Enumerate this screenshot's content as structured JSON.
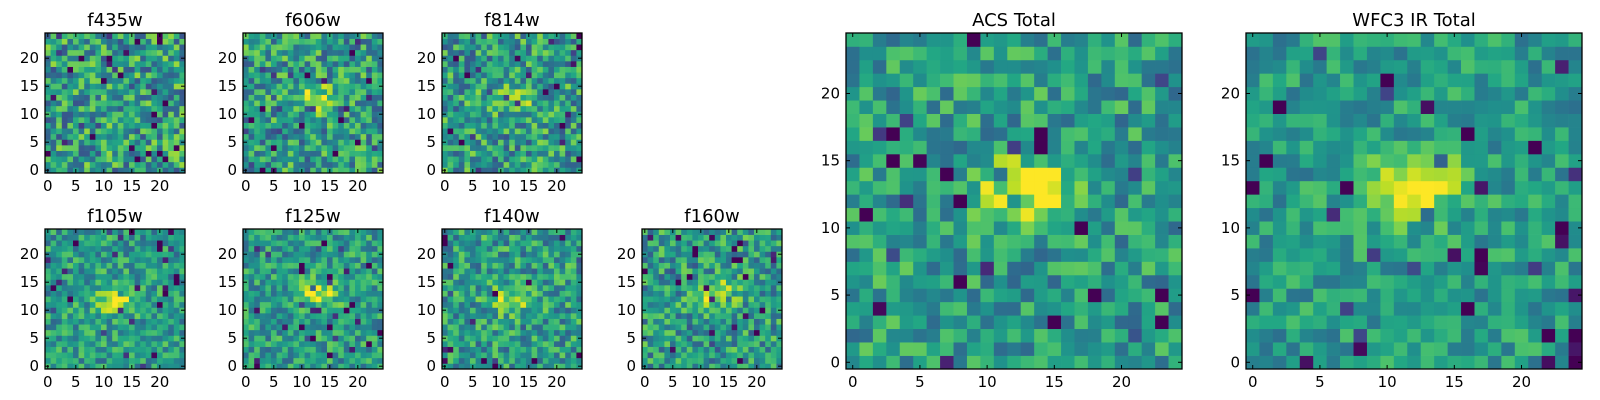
{
  "chart_data": [
    {
      "type": "heatmap",
      "title": "f435w",
      "grid": [
        25,
        25
      ],
      "xlim": [
        0,
        24
      ],
      "ylim": [
        0,
        24
      ],
      "xticks": [
        "0",
        "5",
        "10",
        "15",
        "20"
      ],
      "yticks": [
        "0",
        "5",
        "10",
        "15",
        "20"
      ],
      "source_peak": {
        "x": null,
        "y": null,
        "strength": 0.0
      },
      "noise": 0.3,
      "colormap": "viridis"
    },
    {
      "type": "heatmap",
      "title": "f606w",
      "grid": [
        25,
        25
      ],
      "xlim": [
        0,
        24
      ],
      "ylim": [
        0,
        24
      ],
      "xticks": [
        "0",
        "5",
        "10",
        "15",
        "20"
      ],
      "yticks": [
        "0",
        "5",
        "10",
        "15",
        "20"
      ],
      "source_peak": {
        "x": 13,
        "y": 13,
        "strength": 0.35
      },
      "noise": 0.28,
      "colormap": "viridis"
    },
    {
      "type": "heatmap",
      "title": "f814w",
      "grid": [
        25,
        25
      ],
      "xlim": [
        0,
        24
      ],
      "ylim": [
        0,
        24
      ],
      "xticks": [
        "0",
        "5",
        "10",
        "15",
        "20"
      ],
      "yticks": [
        "0",
        "5",
        "10",
        "15",
        "20"
      ],
      "source_peak": {
        "x": 12,
        "y": 13,
        "strength": 0.35
      },
      "noise": 0.28,
      "colormap": "viridis"
    },
    {
      "type": "heatmap",
      "title": "f105w",
      "grid": [
        25,
        25
      ],
      "xlim": [
        0,
        24
      ],
      "ylim": [
        0,
        24
      ],
      "xticks": [
        "0",
        "5",
        "10",
        "15",
        "20"
      ],
      "yticks": [
        "0",
        "5",
        "10",
        "15",
        "20"
      ],
      "source_peak": {
        "x": 12,
        "y": 12,
        "strength": 0.4
      },
      "noise": 0.22,
      "colormap": "viridis"
    },
    {
      "type": "heatmap",
      "title": "f125w",
      "grid": [
        25,
        25
      ],
      "xlim": [
        0,
        24
      ],
      "ylim": [
        0,
        24
      ],
      "xticks": [
        "0",
        "5",
        "10",
        "15",
        "20"
      ],
      "yticks": [
        "0",
        "5",
        "10",
        "15",
        "20"
      ],
      "source_peak": {
        "x": 13,
        "y": 13,
        "strength": 0.4
      },
      "noise": 0.22,
      "colormap": "viridis"
    },
    {
      "type": "heatmap",
      "title": "f140w",
      "grid": [
        25,
        25
      ],
      "xlim": [
        0,
        24
      ],
      "ylim": [
        0,
        24
      ],
      "xticks": [
        "0",
        "5",
        "10",
        "15",
        "20"
      ],
      "yticks": [
        "0",
        "5",
        "10",
        "15",
        "20"
      ],
      "source_peak": {
        "x": 12,
        "y": 12,
        "strength": 0.35
      },
      "noise": 0.25,
      "colormap": "viridis"
    },
    {
      "type": "heatmap",
      "title": "f160w",
      "grid": [
        25,
        25
      ],
      "xlim": [
        0,
        24
      ],
      "ylim": [
        0,
        24
      ],
      "xticks": [
        "0",
        "5",
        "10",
        "15",
        "20"
      ],
      "yticks": [
        "0",
        "5",
        "10",
        "15",
        "20"
      ],
      "source_peak": {
        "x": 13,
        "y": 13,
        "strength": 0.35
      },
      "noise": 0.25,
      "colormap": "viridis"
    },
    {
      "type": "heatmap",
      "title": "ACS Total",
      "grid": [
        25,
        25
      ],
      "xlim": [
        0,
        24
      ],
      "ylim": [
        0,
        24
      ],
      "xticks": [
        "0",
        "5",
        "10",
        "15",
        "20"
      ],
      "yticks": [
        "0",
        "5",
        "10",
        "15",
        "20"
      ],
      "source_peak": {
        "x": 13,
        "y": 13,
        "strength": 0.45
      },
      "noise": 0.22,
      "colormap": "viridis"
    },
    {
      "type": "heatmap",
      "title": "WFC3 IR Total",
      "grid": [
        25,
        25
      ],
      "xlim": [
        0,
        24
      ],
      "ylim": [
        0,
        24
      ],
      "xticks": [
        "0",
        "5",
        "10",
        "15",
        "20"
      ],
      "yticks": [
        "0",
        "5",
        "10",
        "15",
        "20"
      ],
      "source_peak": {
        "x": 12,
        "y": 13,
        "strength": 0.45
      },
      "noise": 0.18,
      "colormap": "viridis"
    }
  ]
}
